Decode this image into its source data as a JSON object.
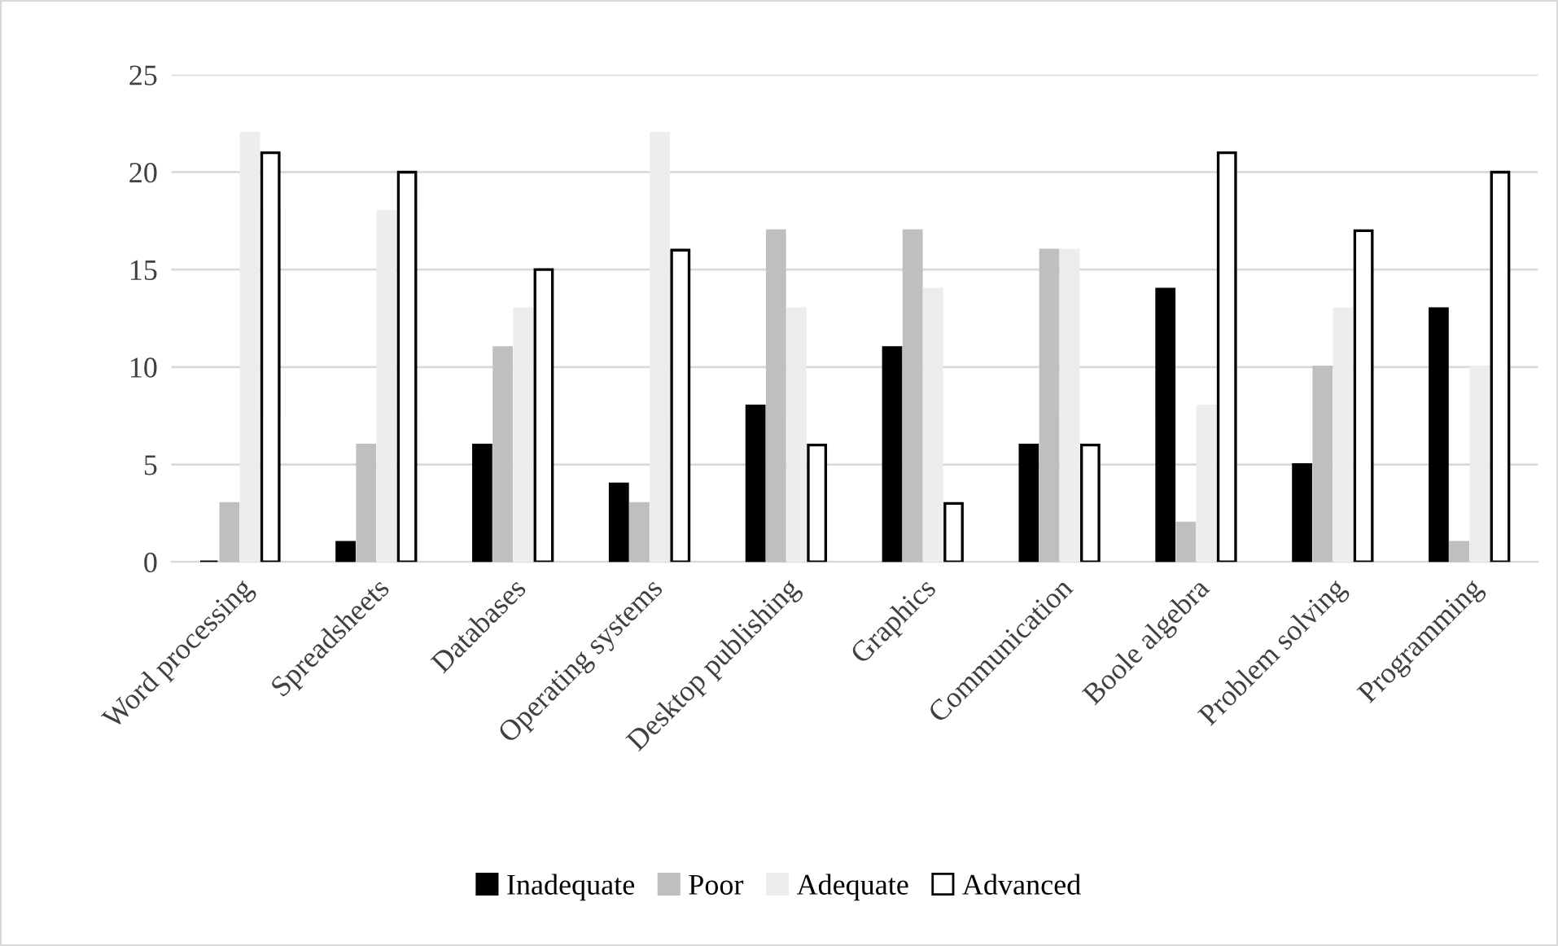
{
  "chart_data": {
    "type": "bar",
    "categories": [
      "Word processing",
      "Spreadsheets",
      "Databases",
      "Operating systems",
      "Desktop publishing",
      "Graphics",
      "Communication",
      "Boole algebra",
      "Problem solving",
      "Programming"
    ],
    "series": [
      {
        "name": "Inadequate",
        "color": "#000000",
        "values": [
          0,
          1,
          6,
          4,
          8,
          11,
          6,
          14,
          5,
          13
        ]
      },
      {
        "name": "Poor",
        "color": "#bfbfbf",
        "values": [
          3,
          6,
          11,
          3,
          17,
          17,
          16,
          2,
          10,
          1
        ]
      },
      {
        "name": "Adequate",
        "color": "#ededed",
        "values": [
          22,
          18,
          13,
          22,
          13,
          14,
          16,
          8,
          13,
          10
        ]
      },
      {
        "name": "Advanced",
        "color": "#ffffff",
        "values": [
          21,
          20,
          15,
          16,
          6,
          3,
          6,
          21,
          17,
          20
        ]
      }
    ],
    "ylim": [
      0,
      25
    ],
    "yticks": [
      0,
      5,
      10,
      15,
      20,
      25
    ],
    "grid": "y",
    "legend": "bottom"
  }
}
